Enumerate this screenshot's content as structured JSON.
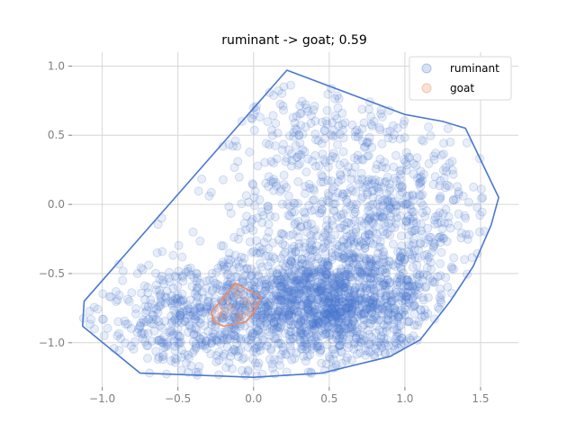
{
  "chart_data": {
    "type": "scatter",
    "title": "ruminant -> goat; 0.59",
    "xlabel": "",
    "ylabel": "",
    "xlim": [
      -1.2,
      1.75
    ],
    "ylim": [
      -1.32,
      1.1
    ],
    "xticks": [
      -1.0,
      -0.5,
      0.0,
      0.5,
      1.0,
      1.5
    ],
    "xtick_labels": [
      "−1.0",
      "−0.5",
      "0.0",
      "0.5",
      "1.0",
      "1.5"
    ],
    "yticks": [
      1.0,
      0.5,
      0.0,
      -0.5,
      -1.0
    ],
    "ytick_labels": [
      "1.0",
      "0.5",
      "0.0",
      "−0.5",
      "−1.0"
    ],
    "grid": true,
    "legend_position": "top-right",
    "series": [
      {
        "name": "ruminant",
        "color": "#4a78d0",
        "kind": "dense point cloud with convex hull",
        "hull": [
          [
            -1.13,
            -0.88
          ],
          [
            -0.75,
            -1.22
          ],
          [
            0.0,
            -1.25
          ],
          [
            0.45,
            -1.22
          ],
          [
            0.9,
            -1.1
          ],
          [
            1.1,
            -0.98
          ],
          [
            1.3,
            -0.7
          ],
          [
            1.45,
            -0.45
          ],
          [
            1.57,
            -0.15
          ],
          [
            1.62,
            0.05
          ],
          [
            1.4,
            0.55
          ],
          [
            1.25,
            0.6
          ],
          [
            1.0,
            0.65
          ],
          [
            0.22,
            0.97
          ],
          [
            -1.12,
            -0.7
          ]
        ],
        "point_sample": [
          [
            0.3,
            -0.8
          ],
          [
            0.5,
            -0.7
          ],
          [
            0.4,
            -0.9
          ],
          [
            0.6,
            -0.6
          ],
          [
            0.2,
            -0.5
          ],
          [
            0.7,
            -0.3
          ],
          [
            0.8,
            -0.1
          ],
          [
            0.9,
            0.1
          ],
          [
            0.1,
            0.2
          ],
          [
            0.3,
            0.5
          ],
          [
            -0.3,
            -0.7
          ],
          [
            -0.5,
            -0.9
          ],
          [
            -0.7,
            -0.6
          ],
          [
            -0.9,
            -0.95
          ],
          [
            -0.2,
            -0.3
          ],
          [
            0.0,
            0.7
          ],
          [
            0.2,
            0.85
          ],
          [
            1.2,
            0.2
          ],
          [
            1.4,
            -0.1
          ],
          [
            1.1,
            -0.5
          ],
          [
            0.6,
            0.3
          ],
          [
            -0.1,
            -1.1
          ],
          [
            0.5,
            -1.1
          ],
          [
            1.0,
            -0.8
          ],
          [
            0.1,
            -0.2
          ],
          [
            -0.4,
            -0.2
          ],
          [
            0.4,
            0.1
          ],
          [
            0.75,
            0.45
          ],
          [
            1.3,
            0.45
          ],
          [
            -0.6,
            -1.1
          ]
        ]
      },
      {
        "name": "goat",
        "color": "#f08a5d",
        "kind": "small point cluster with convex hull",
        "hull": [
          [
            -0.12,
            -0.57
          ],
          [
            0.05,
            -0.67
          ],
          [
            0.0,
            -0.78
          ],
          [
            -0.05,
            -0.85
          ],
          [
            -0.2,
            -0.88
          ],
          [
            -0.26,
            -0.85
          ],
          [
            -0.28,
            -0.78
          ],
          [
            -0.22,
            -0.7
          ]
        ],
        "points": [
          [
            -0.1,
            -0.65
          ],
          [
            -0.05,
            -0.7
          ],
          [
            -0.15,
            -0.75
          ],
          [
            -0.2,
            -0.8
          ],
          [
            -0.08,
            -0.8
          ],
          [
            0.0,
            -0.72
          ],
          [
            -0.18,
            -0.68
          ],
          [
            -0.12,
            -0.6
          ],
          [
            -0.22,
            -0.76
          ],
          [
            -0.1,
            -0.82
          ],
          [
            -0.25,
            -0.82
          ],
          [
            -0.02,
            -0.78
          ]
        ]
      }
    ]
  }
}
